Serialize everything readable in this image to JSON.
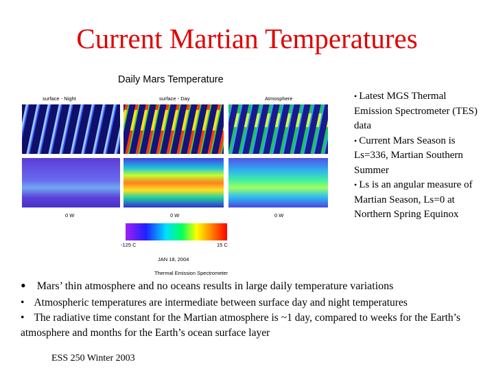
{
  "header": {
    "title": "Current Martian Temperatures"
  },
  "figure": {
    "title": "Daily Mars Temperature",
    "panels": [
      "surface - Night",
      "surface - Day",
      "Atmosphere"
    ],
    "longitudes": [
      "0 W",
      "0 W",
      "0 W"
    ],
    "scale_min": "-125 C",
    "scale_max": "15 C",
    "date": "JAN 18, 2004",
    "source": "Thermal Emission Spectrometer"
  },
  "side_bullets": [
    "Latest MGS Thermal Emission Spectrometer (TES) data",
    "Current Mars Season is Ls=336, Martian Southern Summer",
    "Ls is an angular measure of Martian Season, Ls=0 at Northern Spring Equinox"
  ],
  "bullets": [
    "Mars’ thin atmosphere and no oceans results in large daily temperature variations",
    "Atmospheric temperatures are intermediate between surface day and night temperatures",
    "The radiative time constant for the Martian atmosphere is ~1 day, compared to weeks for the Earth’s atmosphere and months for the Earth’s ocean surface layer"
  ],
  "footer": "ESS 250 Winter 2003"
}
